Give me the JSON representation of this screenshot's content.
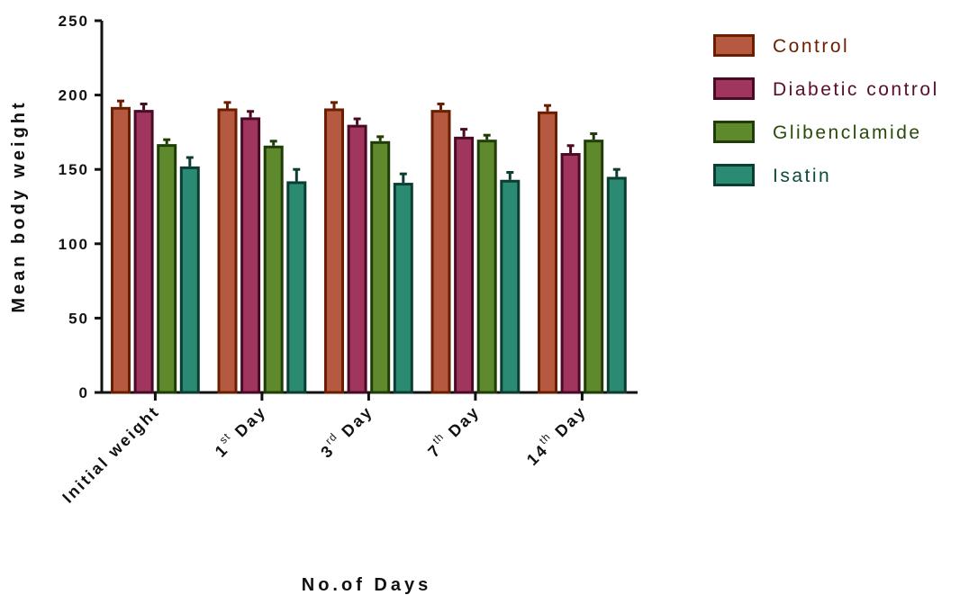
{
  "chart_data": {
    "type": "bar",
    "ylabel": "Mean body weight",
    "xlabel": "No.of Days",
    "ylim": [
      0,
      250
    ],
    "yticks": [
      "0",
      "50",
      "100",
      "150",
      "200",
      "250"
    ],
    "categories": [
      {
        "main": "Initial weight",
        "sup": ""
      },
      {
        "main": "1",
        "sup": "st",
        "tail": " Day"
      },
      {
        "main": "3",
        "sup": "rd",
        "tail": " Day"
      },
      {
        "main": "7",
        "sup": "th",
        "tail": " Day"
      },
      {
        "main": "14",
        "sup": "th",
        "tail": " Day"
      }
    ],
    "series": [
      {
        "name": "Control",
        "fill": "#b55a40",
        "stroke": "#6b1d00",
        "text_color": "#6b1d00",
        "values": [
          192,
          191,
          191,
          190,
          189
        ],
        "errors": [
          4,
          4,
          4,
          4,
          4
        ]
      },
      {
        "name": "Diabetic control",
        "fill": "#a0365e",
        "stroke": "#4a0a25",
        "text_color": "#5a0c2c",
        "values": [
          190,
          185,
          180,
          172,
          161
        ],
        "errors": [
          4,
          4,
          4,
          5,
          5
        ]
      },
      {
        "name": "Glibenclamide",
        "fill": "#5e8a2d",
        "stroke": "#1f3d06",
        "text_color": "#2a4a0a",
        "values": [
          167,
          166,
          169,
          170,
          170
        ],
        "errors": [
          3,
          3,
          3,
          3,
          4
        ]
      },
      {
        "name": "Isatin",
        "fill": "#2a8a72",
        "stroke": "#0b3d33",
        "text_color": "#0b4a3e",
        "values": [
          152,
          142,
          141,
          143,
          145
        ],
        "errors": [
          6,
          8,
          6,
          5,
          5
        ]
      }
    ],
    "legend_position": "top-right",
    "grid": false
  }
}
